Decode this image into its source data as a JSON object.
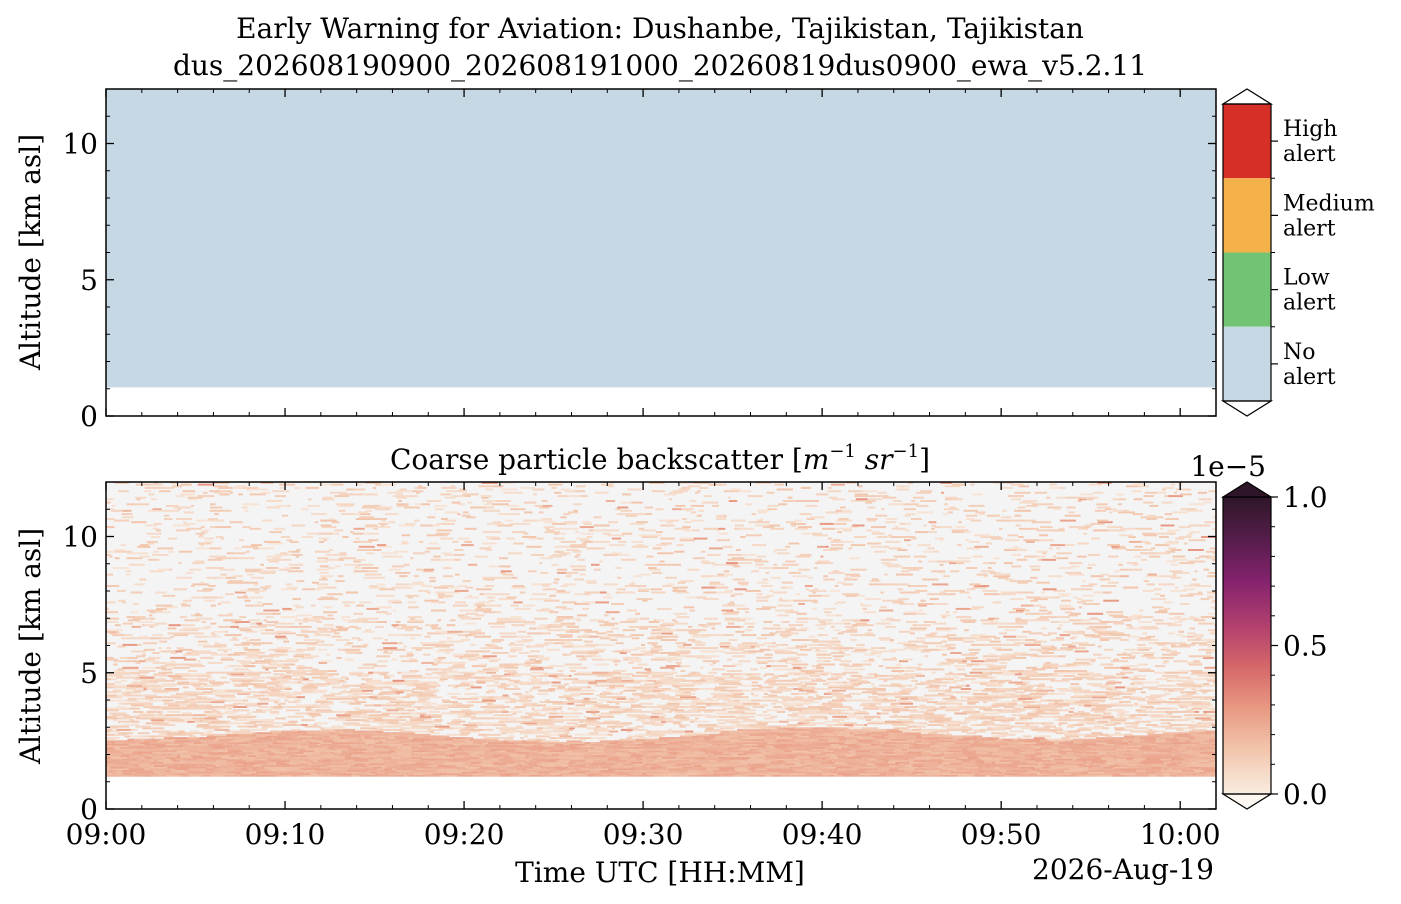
{
  "title": {
    "line1": "Early Warning for Aviation: Dushanbe, Tajikistan, Tajikistan",
    "line2": "dus_202608190900_202608191000_20260819dus0900_ewa_v5.2.11"
  },
  "date_label": "2026-Aug-19",
  "chart_data": [
    {
      "type": "heatmap",
      "title": "",
      "ylabel": "Altitude [km asl]",
      "xlabel": "",
      "x_range": [
        "09:00",
        "10:02"
      ],
      "ylim": [
        0,
        12
      ],
      "yticks": [
        "0",
        "5",
        "10"
      ],
      "yticks_values": [
        0,
        5,
        10
      ],
      "alert_fill": {
        "x_range": [
          "09:00",
          "10:02"
        ],
        "altitude_range_km": [
          1.05,
          12
        ],
        "level": "No alert"
      },
      "colorbar": {
        "type": "categorical",
        "categories": [
          {
            "label": [
              "High",
              "alert"
            ],
            "color": "#d62f27"
          },
          {
            "label": [
              "Medium",
              "alert"
            ],
            "color": "#f6b24a"
          },
          {
            "label": [
              "Low",
              "alert"
            ],
            "color": "#72c373"
          },
          {
            "label": [
              "No",
              "alert"
            ],
            "color": "#c6d8e4"
          }
        ]
      }
    },
    {
      "type": "heatmap",
      "title_text": "Coarse particle backscatter [",
      "title_math": [
        "m",
        "−1",
        " sr",
        "−1"
      ],
      "title_close": "]",
      "ylabel": "Altitude [km asl]",
      "xlabel": "Time UTC [HH:MM]",
      "xticks": [
        "09:00",
        "09:10",
        "09:20",
        "09:30",
        "09:40",
        "09:50",
        "10:00"
      ],
      "yticks": [
        "0",
        "5",
        "10"
      ],
      "yticks_values": [
        0,
        5,
        10
      ],
      "ylim": [
        0,
        12
      ],
      "x_range": [
        "09:00",
        "10:02"
      ],
      "data_bottom_km": 1.2,
      "boundary_layer_top_km": [
        2.5,
        2.6,
        2.8,
        2.9,
        2.7,
        2.5,
        2.4,
        2.6,
        2.9,
        3.0,
        2.8,
        2.6,
        2.5,
        2.7,
        2.9
      ],
      "colorbar": {
        "type": "continuous",
        "scale_label": "1e−5",
        "ticks": [
          "0.0",
          "0.5",
          "1.0"
        ],
        "tick_values": [
          0.0,
          0.5,
          1.0
        ],
        "range": [
          0.0,
          1.0
        ],
        "colormap": [
          "#f9ece1",
          "#f2c7ae",
          "#e99a83",
          "#d5676a",
          "#b03f6e",
          "#85236e",
          "#561d4c",
          "#2e1628"
        ]
      }
    }
  ]
}
